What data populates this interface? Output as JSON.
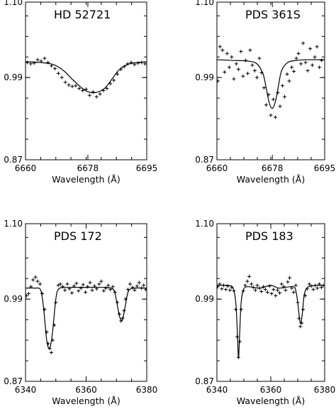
{
  "chart_data": [
    {
      "type": "line",
      "title": "HD 52721",
      "xlabel": "Wavelength (Å)",
      "ylabel": "",
      "xlim": [
        6660,
        6695
      ],
      "ylim": [
        0.87,
        1.1
      ],
      "xticks": [
        "6660",
        "6678",
        "6695"
      ],
      "yticks": [
        "0.87",
        "0.99",
        "1.10"
      ],
      "fit": {
        "x": [
          6660,
          6664,
          6668,
          6671,
          6674,
          6677,
          6679,
          6681,
          6683,
          6685,
          6687,
          6690,
          6695
        ],
        "y": [
          1.013,
          1.012,
          1.009,
          1.0,
          0.985,
          0.972,
          0.968,
          0.969,
          0.975,
          0.988,
          1.001,
          1.01,
          1.013
        ]
      },
      "points": {
        "x": [
          6660.5,
          6661.5,
          6662.5,
          6663.5,
          6664.5,
          6665.5,
          6666.5,
          6667.5,
          6668.5,
          6669.5,
          6670.5,
          6671.5,
          6672.5,
          6673.5,
          6674.5,
          6675.5,
          6676.5,
          6677.5,
          6678.5,
          6679.5,
          6680.5,
          6681.5,
          6682.5,
          6683.5,
          6684.5,
          6685.5,
          6686.5,
          6687.5,
          6688.5,
          6689.5,
          6690.5,
          6691.5,
          6692.5,
          6693.5,
          6694.5
        ],
        "y": [
          1.012,
          1.01,
          1.011,
          1.016,
          1.014,
          1.018,
          1.012,
          1.007,
          1.003,
          0.996,
          0.99,
          0.983,
          0.979,
          0.977,
          0.978,
          0.974,
          0.971,
          0.973,
          0.964,
          0.969,
          0.962,
          0.966,
          0.971,
          0.974,
          0.981,
          0.986,
          0.995,
          1.002,
          1.006,
          1.01,
          1.012,
          1.009,
          1.011,
          1.012,
          1.01
        ]
      }
    },
    {
      "type": "line",
      "title": "PDS 361S",
      "xlabel": "Wavelength (Å)",
      "ylabel": "",
      "xlim": [
        6660,
        6695
      ],
      "ylim": [
        0.87,
        1.1
      ],
      "xticks": [
        "6660",
        "6678",
        "6695"
      ],
      "yticks": [
        "0.87",
        "0.99",
        "1.10"
      ],
      "fit": {
        "x": [
          6660,
          6665,
          6670,
          6673,
          6675,
          6676,
          6677,
          6678,
          6679,
          6680,
          6681,
          6683,
          6686,
          6690,
          6695
        ],
        "y": [
          1.016,
          1.015,
          1.014,
          1.01,
          0.995,
          0.975,
          0.953,
          0.945,
          0.955,
          0.978,
          1.0,
          1.012,
          1.015,
          1.016,
          1.016
        ]
      },
      "points": {
        "x": [
          6660.3,
          6661.0,
          6661.8,
          6662.5,
          6663.3,
          6664.0,
          6664.8,
          6665.5,
          6666.3,
          6667.0,
          6667.8,
          6668.5,
          6669.3,
          6670.0,
          6670.8,
          6671.5,
          6672.3,
          6673.0,
          6673.8,
          6674.5,
          6675.3,
          6676.0,
          6676.8,
          6677.5,
          6678.3,
          6679.0,
          6679.8,
          6680.5,
          6681.3,
          6682.0,
          6682.8,
          6683.5,
          6684.3,
          6685.0,
          6685.8,
          6686.5,
          6687.3,
          6688.0,
          6688.8,
          6689.5,
          6690.3,
          6691.0,
          6691.8,
          6692.5,
          6693.3,
          6694.0
        ],
        "y": [
          0.985,
          1.035,
          1.03,
          0.998,
          1.025,
          1.005,
          1.02,
          0.988,
          1.01,
          1.002,
          1.028,
          0.992,
          1.015,
          0.996,
          1.03,
          1.008,
          1.0,
          0.99,
          1.018,
          0.997,
          0.975,
          0.95,
          0.965,
          0.935,
          0.958,
          0.932,
          0.968,
          0.948,
          0.978,
          0.962,
          0.995,
          0.985,
          1.005,
          0.999,
          1.018,
          1.025,
          1.01,
          1.04,
          1.012,
          1.0,
          1.032,
          1.008,
          1.02,
          1.035,
          1.005,
          1.015
        ]
      }
    },
    {
      "type": "line",
      "title": "PDS 172",
      "xlabel": "Wavelength (Å)",
      "ylabel": "",
      "xlim": [
        6340,
        6380
      ],
      "ylim": [
        0.87,
        1.1
      ],
      "xticks": [
        "6340",
        "6360",
        "6380"
      ],
      "yticks": [
        "0.87",
        "0.99",
        "1.10"
      ],
      "fit": {
        "x": [
          6340,
          6343,
          6345,
          6346,
          6347,
          6348,
          6349,
          6350,
          6351,
          6354,
          6360,
          6366,
          6369,
          6370,
          6371,
          6372,
          6373,
          6374,
          6376,
          6380
        ],
        "y": [
          1.006,
          1.006,
          1.003,
          0.975,
          0.93,
          0.918,
          0.945,
          0.99,
          1.005,
          1.007,
          1.007,
          1.007,
          1.004,
          0.988,
          0.965,
          0.96,
          0.982,
          1.002,
          1.006,
          1.006
        ]
      },
      "points": {
        "x": [
          6340.3,
          6341.0,
          6341.8,
          6342.5,
          6343.3,
          6344.0,
          6344.8,
          6345.5,
          6346.3,
          6347.0,
          6347.5,
          6348.0,
          6348.5,
          6349.0,
          6349.5,
          6350.0,
          6350.8,
          6351.5,
          6352.3,
          6353.0,
          6353.8,
          6354.5,
          6355.3,
          6356.0,
          6356.8,
          6357.5,
          6358.3,
          6359.0,
          6359.8,
          6360.5,
          6361.3,
          6362.0,
          6362.8,
          6363.5,
          6364.3,
          6365.0,
          6365.8,
          6366.5,
          6367.3,
          6368.0,
          6368.8,
          6369.5,
          6370.3,
          6371.0,
          6371.5,
          6372.0,
          6372.5,
          6373.0,
          6373.8,
          6374.5,
          6375.3,
          6376.0,
          6376.8,
          6377.5,
          6378.3,
          6379.0,
          6379.7
        ],
        "y": [
          0.995,
          0.998,
          1.008,
          1.018,
          1.022,
          1.016,
          1.012,
          0.998,
          0.975,
          0.942,
          0.925,
          0.918,
          0.912,
          0.93,
          0.952,
          0.985,
          1.01,
          1.012,
          1.008,
          1.003,
          1.012,
          1.005,
          0.999,
          1.009,
          1.013,
          1.002,
          1.006,
          1.011,
          1.0,
          1.008,
          1.014,
          1.003,
          1.009,
          1.005,
          1.012,
          1.016,
          1.002,
          1.006,
          1.01,
          1.004,
          1.008,
          1.0,
          0.985,
          0.968,
          0.958,
          0.962,
          0.973,
          0.99,
          1.004,
          1.012,
          1.007,
          1.003,
          1.009,
          1.014,
          1.006,
          1.01,
          1.004
        ]
      }
    },
    {
      "type": "line",
      "title": "PDS 183",
      "xlabel": "Wavelength (Å)",
      "ylabel": "",
      "xlim": [
        6340,
        6380
      ],
      "ylim": [
        0.87,
        1.1
      ],
      "xticks": [
        "6340",
        "6360",
        "6380"
      ],
      "yticks": [
        "0.87",
        "0.99",
        "1.10"
      ],
      "fit": {
        "x": [
          6340,
          6344,
          6346,
          6347,
          6347.6,
          6348.0,
          6348.4,
          6349,
          6350,
          6352,
          6356,
          6360,
          6363,
          6367,
          6369,
          6370,
          6370.7,
          6371.2,
          6371.8,
          6372.5,
          6374,
          6377,
          6380
        ],
        "y": [
          1.01,
          1.01,
          1.006,
          0.985,
          0.94,
          0.904,
          0.935,
          0.985,
          1.005,
          1.008,
          1.006,
          1.01,
          1.006,
          1.008,
          1.006,
          0.985,
          0.96,
          0.955,
          0.972,
          0.998,
          1.008,
          1.01,
          1.01
        ]
      },
      "points": {
        "x": [
          6340.3,
          6341.0,
          6341.8,
          6342.5,
          6343.3,
          6344.0,
          6344.8,
          6345.5,
          6346.3,
          6347.0,
          6347.5,
          6348.0,
          6348.5,
          6349.0,
          6349.8,
          6350.5,
          6351.3,
          6352.0,
          6352.8,
          6353.5,
          6354.3,
          6355.0,
          6355.8,
          6356.5,
          6357.3,
          6358.0,
          6358.8,
          6359.5,
          6360.3,
          6361.0,
          6361.8,
          6362.5,
          6363.3,
          6364.0,
          6364.8,
          6365.5,
          6366.3,
          6367.0,
          6367.8,
          6368.5,
          6369.3,
          6370.0,
          6370.5,
          6371.0,
          6371.5,
          6372.0,
          6372.8,
          6373.5,
          6374.3,
          6375.0,
          6375.8,
          6376.5,
          6377.3,
          6378.0,
          6378.8,
          6379.5
        ],
        "y": [
          1.008,
          1.012,
          1.005,
          1.01,
          1.004,
          1.009,
          1.003,
          1.007,
          1.002,
          0.975,
          0.935,
          0.905,
          0.928,
          0.975,
          1.002,
          1.01,
          1.016,
          1.023,
          1.012,
          1.007,
          1.003,
          1.01,
          1.006,
          1.001,
          1.008,
          1.004,
          1.0,
          1.009,
          0.998,
          1.004,
          0.995,
          1.003,
          0.999,
          1.012,
          1.008,
          1.003,
          1.015,
          1.021,
          1.006,
          1.0,
          1.01,
          0.985,
          0.962,
          0.95,
          0.955,
          0.975,
          0.995,
          1.005,
          1.012,
          1.009,
          1.004,
          1.01,
          1.006,
          1.012,
          1.007,
          1.01
        ]
      }
    }
  ]
}
